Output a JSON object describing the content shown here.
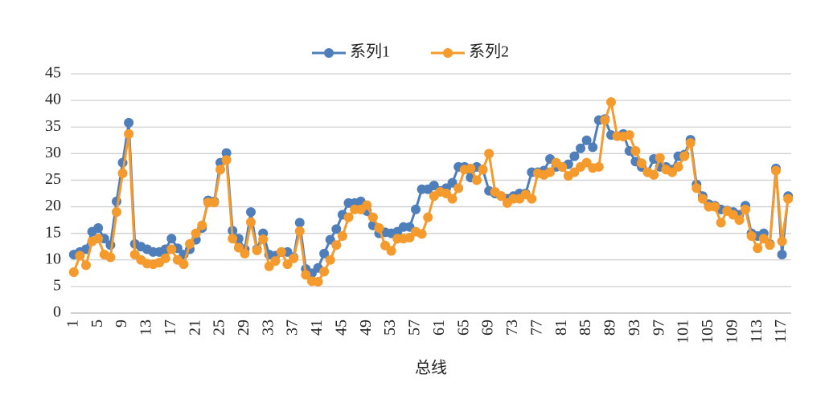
{
  "chart_data": {
    "type": "line",
    "x_label": "总线",
    "categories": [
      "1",
      null,
      null,
      null,
      "5",
      null,
      null,
      null,
      "9",
      null,
      null,
      null,
      "13",
      null,
      null,
      null,
      "17",
      null,
      null,
      null,
      "21",
      null,
      null,
      null,
      "25",
      null,
      null,
      null,
      "29",
      null,
      null,
      null,
      "33",
      null,
      null,
      null,
      "37",
      null,
      null,
      null,
      "41",
      null,
      null,
      null,
      "45",
      null,
      null,
      null,
      "49",
      null,
      null,
      null,
      "53",
      null,
      null,
      null,
      "57",
      null,
      null,
      null,
      "61",
      null,
      null,
      null,
      "65",
      null,
      null,
      null,
      "69",
      null,
      null,
      null,
      "73",
      null,
      null,
      null,
      "77",
      null,
      null,
      null,
      "81",
      null,
      null,
      null,
      "85",
      null,
      null,
      null,
      "89",
      null,
      null,
      null,
      "93",
      null,
      null,
      null,
      "97",
      null,
      null,
      null,
      "101",
      null,
      null,
      null,
      "105",
      null,
      null,
      null,
      "109",
      null,
      null,
      null,
      "113",
      null,
      null,
      null,
      "117",
      null
    ],
    "series": [
      {
        "name": "系列1",
        "color": "#4f7fbb",
        "values": [
          11,
          11.5,
          12,
          15.3,
          16,
          14,
          12.8,
          21,
          28.3,
          35.8,
          13,
          12.5,
          12,
          11.5,
          11.5,
          12,
          14,
          12.2,
          11,
          12,
          13.8,
          16,
          21.2,
          21,
          28.3,
          30.1,
          15.5,
          14,
          12,
          19,
          12,
          15,
          11,
          10.8,
          11.5,
          11.5,
          10.5,
          17,
          8.3,
          7.5,
          8.5,
          11.2,
          13.8,
          15.8,
          18.5,
          20.7,
          20.7,
          21,
          19.2,
          16.5,
          15,
          15.2,
          15,
          15.3,
          16.2,
          16.2,
          19.5,
          23.3,
          23.3,
          24,
          23,
          23.5,
          24.5,
          27.5,
          27.5,
          25.5,
          27.5,
          27,
          23,
          22.5,
          22,
          21.5,
          22,
          22.5,
          22.5,
          26.5,
          26.5,
          26.8,
          29,
          27.5,
          27.5,
          28,
          29.5,
          31,
          32.5,
          31.2,
          36.3,
          36.5,
          33.5,
          33.3,
          33.7,
          30.5,
          28.5,
          27.5,
          26.5,
          29,
          27.5,
          27.5,
          27,
          29.5,
          29.8,
          32.6,
          24.2,
          22,
          20.5,
          20.2,
          19.5,
          19.3,
          19,
          18.5,
          20.2,
          15,
          14.5,
          15,
          13,
          27.2,
          11,
          22
        ]
      },
      {
        "name": "系列2",
        "color": "#f59a2c",
        "values": [
          7.7,
          10.8,
          9,
          13.5,
          14,
          11,
          10.5,
          19,
          26.3,
          33.7,
          11,
          10,
          9.3,
          9.2,
          9.5,
          10.3,
          12,
          10,
          9.2,
          13,
          15,
          16.5,
          20.8,
          20.8,
          27,
          28.8,
          14,
          12.3,
          11.2,
          17.1,
          11.8,
          13.9,
          8.8,
          9.8,
          11.5,
          9.2,
          10.3,
          15.4,
          7.2,
          6,
          5.9,
          7.8,
          10,
          12.8,
          14.5,
          18,
          19.5,
          19.5,
          20.3,
          18,
          16,
          12.7,
          11.7,
          14,
          14,
          14.2,
          15.3,
          14.9,
          18,
          22,
          22.8,
          22.5,
          21.5,
          23.5,
          27,
          27.2,
          25,
          27,
          30,
          22.8,
          22,
          20.7,
          21.5,
          21.5,
          22.3,
          21.5,
          26.3,
          26,
          26.5,
          28.3,
          27.5,
          25.8,
          26.5,
          27.5,
          28.3,
          27.3,
          27.5,
          36.3,
          39.7,
          33.3,
          33.2,
          33.5,
          30.5,
          28.2,
          26.5,
          26,
          29.2,
          27,
          26.5,
          27.5,
          29.5,
          32,
          23.5,
          21.5,
          20,
          20,
          17,
          19.2,
          18.5,
          17.5,
          19.5,
          14.5,
          12.2,
          14,
          12.8,
          26.8,
          13.5,
          21.5
        ]
      }
    ],
    "ylim": [
      0,
      45
    ],
    "yticks": [
      0,
      5,
      10,
      15,
      20,
      25,
      30,
      35,
      40,
      45
    ],
    "grid": true,
    "legend": "top"
  }
}
